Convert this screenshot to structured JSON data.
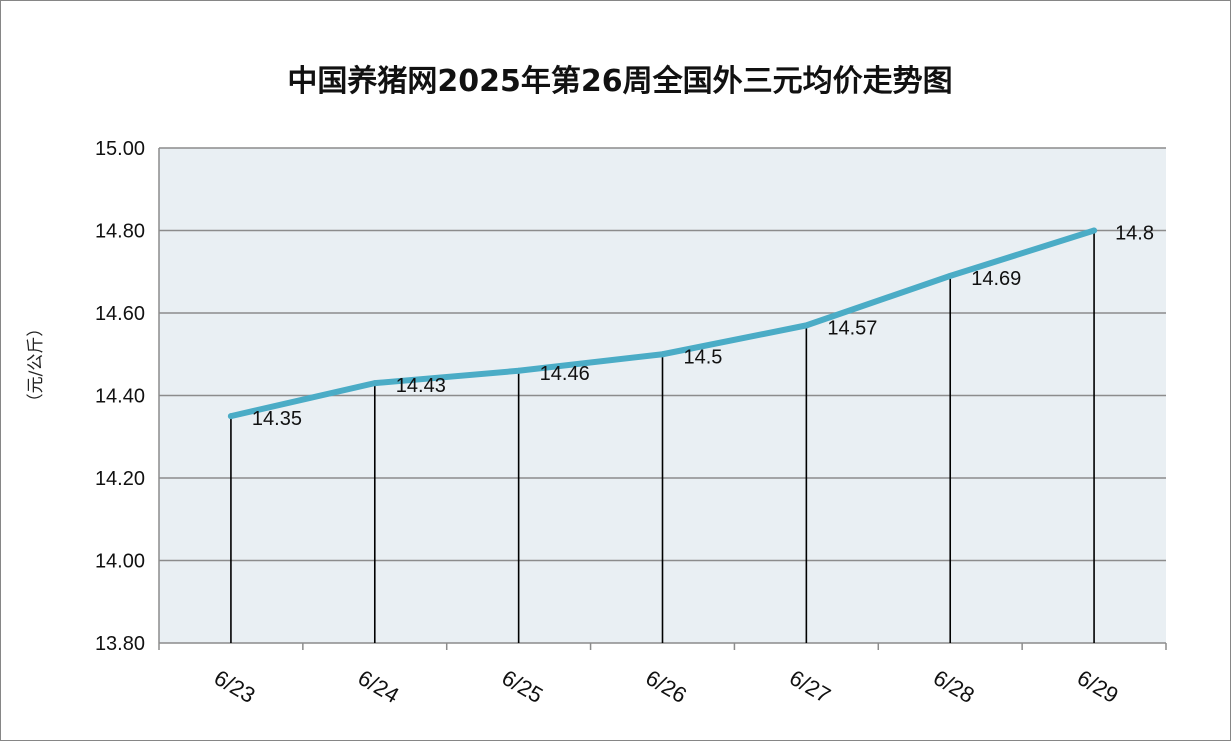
{
  "chart_data": {
    "type": "line",
    "title": "中国养猪网2025年第26周全国外三元均价走势图",
    "xlabel": "",
    "ylabel": "（元/公斤）",
    "categories": [
      "6/23",
      "6/24",
      "6/25",
      "6/26",
      "6/27",
      "6/28",
      "6/29"
    ],
    "values": [
      14.35,
      14.43,
      14.46,
      14.5,
      14.57,
      14.69,
      14.8
    ],
    "data_labels": [
      "14.35",
      "14.43",
      "14.46",
      "14.5",
      "14.57",
      "14.69",
      "14.8"
    ],
    "y_ticks": [
      "13.80",
      "14.00",
      "14.20",
      "14.40",
      "14.60",
      "14.80",
      "15.00"
    ],
    "ylim": [
      13.8,
      15.0
    ],
    "y_tick_step": 0.2,
    "grid": true,
    "drop_lines": true,
    "legend": "none",
    "colors": {
      "line": "#4bacc6",
      "plot_background": "#e9eff3",
      "gridline": "#8c8c8c",
      "drop_line": "#000000"
    }
  }
}
